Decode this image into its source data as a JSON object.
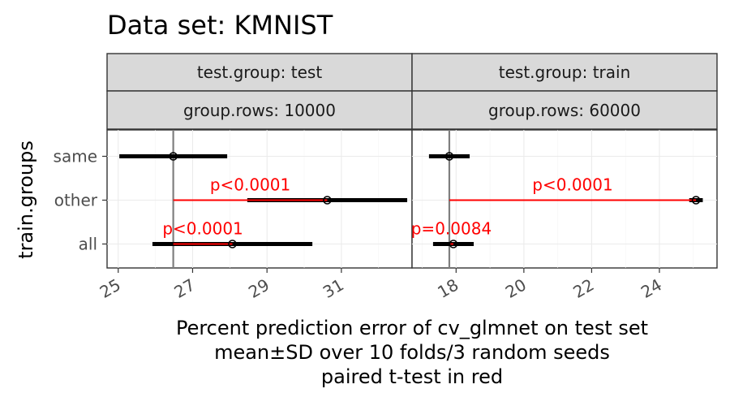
{
  "chart_data": {
    "type": "forest-interval",
    "title": "Data set: KMNIST",
    "xlabel_lines": [
      "Percent prediction error of cv_glmnet on test set",
      "mean±SD over 10 folds/3 random seeds",
      "paired t-test in red"
    ],
    "ylabel": "train.groups",
    "y_categories": [
      "same",
      "other",
      "all"
    ],
    "colors": {
      "interval": "#000000",
      "ttest": "#ff0000",
      "reference": "#7f7f7f"
    },
    "panels": [
      {
        "strip_top": "test.group: test",
        "strip_bottom": "group.rows: 10000",
        "xlim": [
          24.7,
          32.9
        ],
        "ticks": [
          25,
          27,
          29,
          31
        ],
        "tick_labels": [
          "25",
          "27",
          "29",
          "31"
        ],
        "reference_x": 26.48,
        "points": [
          {
            "group": "same",
            "mean": 26.48,
            "sd": 1.45
          },
          {
            "group": "other",
            "mean": 30.62,
            "sd": 2.15
          },
          {
            "group": "all",
            "mean": 28.07,
            "sd": 2.15
          }
        ],
        "ttests": [
          {
            "group": "other",
            "label": "p<0.0001"
          },
          {
            "group": "all",
            "label": "p<0.0001"
          }
        ]
      },
      {
        "strip_top": "test.group: train",
        "strip_bottom": "group.rows: 60000",
        "xlim": [
          16.7,
          25.7
        ],
        "ticks": [
          18,
          20,
          22,
          24
        ],
        "tick_labels": [
          "18",
          "20",
          "22",
          "24"
        ],
        "reference_x": 17.8,
        "points": [
          {
            "group": "same",
            "mean": 17.8,
            "sd": 0.6
          },
          {
            "group": "other",
            "mean": 25.08,
            "sd": 0.2
          },
          {
            "group": "all",
            "mean": 17.92,
            "sd": 0.6
          }
        ],
        "ttests": [
          {
            "group": "other",
            "label": "p<0.0001"
          },
          {
            "group": "all",
            "label": "p=0.0084"
          }
        ]
      }
    ]
  }
}
